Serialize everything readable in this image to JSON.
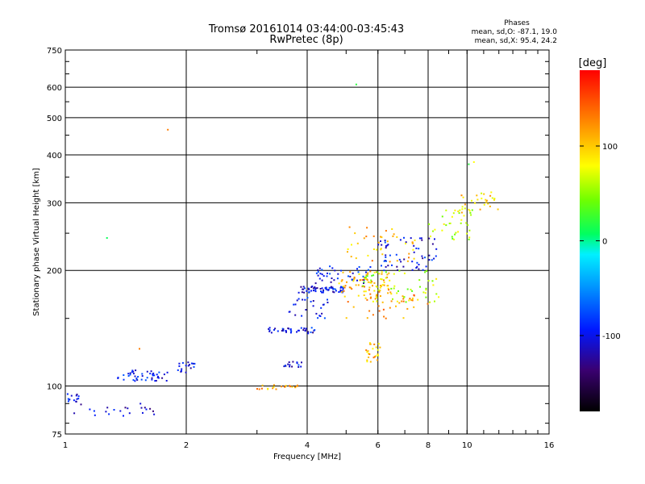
{
  "chart_data": {
    "type": "scatter",
    "title": "Tromsø 20161014 03:44:00-03:45:43",
    "subtitle": "RwPretec (8p)",
    "xlabel": "Frequency [MHz]",
    "ylabel": "Stationary phase Virtual Height [km]",
    "x_scale": "log",
    "y_scale": "log",
    "xlim": [
      1,
      16
    ],
    "ylim": [
      75,
      750
    ],
    "x_ticks": [
      1,
      2,
      4,
      6,
      8,
      10,
      16
    ],
    "y_ticks": [
      75,
      100,
      200,
      300,
      400,
      500,
      600,
      750
    ],
    "grid": true,
    "phases": {
      "heading": "Phases",
      "line_o": "mean, sd,O: -87.1, 19.0",
      "line_x": "mean, sd,X:  95.4, 24.2"
    },
    "colorbar": {
      "label": "[deg]",
      "range": [
        -180,
        180
      ],
      "ticks": [
        100,
        0,
        -100
      ],
      "tick_labels": [
        "100",
        "0",
        "-100"
      ]
    },
    "clusters": [
      {
        "freq": [
          1.0,
          1.08
        ],
        "height": [
          90,
          96
        ],
        "phase": -100,
        "count": 14
      },
      {
        "freq": [
          1.05,
          1.7
        ],
        "height": [
          83,
          90
        ],
        "phase": -105,
        "count": 22
      },
      {
        "freq": [
          1.35,
          1.8
        ],
        "height": [
          103,
          110
        ],
        "phase": -100,
        "count": 45
      },
      {
        "freq": [
          1.9,
          2.1
        ],
        "height": [
          108,
          116
        ],
        "phase": -100,
        "count": 18
      },
      {
        "freq": [
          3.0,
          3.8
        ],
        "height": [
          98,
          101
        ],
        "phase": 110,
        "count": 22
      },
      {
        "freq": [
          3.5,
          3.9
        ],
        "height": [
          112,
          116
        ],
        "phase": -100,
        "count": 16
      },
      {
        "freq": [
          3.2,
          4.2
        ],
        "height": [
          137,
          142
        ],
        "phase": -100,
        "count": 38
      },
      {
        "freq": [
          3.6,
          4.5
        ],
        "height": [
          150,
          170
        ],
        "phase": -100,
        "count": 26
      },
      {
        "freq": [
          3.8,
          5.0
        ],
        "height": [
          175,
          182
        ],
        "phase": -100,
        "count": 60
      },
      {
        "freq": [
          4.2,
          5.8
        ],
        "height": [
          185,
          205
        ],
        "phase": -95,
        "count": 40
      },
      {
        "freq": [
          4.8,
          6.5
        ],
        "height": [
          170,
          200
        ],
        "phase": 110,
        "count": 70
      },
      {
        "freq": [
          5.6,
          6.1
        ],
        "height": [
          115,
          130
        ],
        "phase": 105,
        "count": 24
      },
      {
        "freq": [
          5.5,
          8.5
        ],
        "height": [
          165,
          200
        ],
        "phase": 60,
        "count": 60
      },
      {
        "freq": [
          5.0,
          8.0
        ],
        "height": [
          150,
          175
        ],
        "phase": 120,
        "count": 40
      },
      {
        "freq": [
          6.0,
          8.4
        ],
        "height": [
          200,
          245
        ],
        "phase": -100,
        "count": 60
      },
      {
        "freq": [
          5.0,
          7.5
        ],
        "height": [
          210,
          260
        ],
        "phase": 110,
        "count": 40
      },
      {
        "freq": [
          8.0,
          10.5
        ],
        "height": [
          240,
          290
        ],
        "phase": 60,
        "count": 35
      },
      {
        "freq": [
          9.5,
          12.0
        ],
        "height": [
          280,
          320
        ],
        "phase": 95,
        "count": 30
      }
    ],
    "outliers": [
      {
        "freq": 1.27,
        "height": 243,
        "phase": 10
      },
      {
        "freq": 1.8,
        "height": 465,
        "phase": 130
      },
      {
        "freq": 5.3,
        "height": 610,
        "phase": 20
      },
      {
        "freq": 10.1,
        "height": 378,
        "phase": 20
      },
      {
        "freq": 10.4,
        "height": 383,
        "phase": 80
      },
      {
        "freq": 1.53,
        "height": 125,
        "phase": 130
      }
    ]
  }
}
